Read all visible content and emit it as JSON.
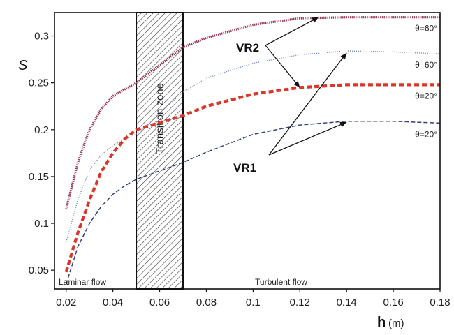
{
  "chart_data": {
    "type": "line",
    "xlabel": "h",
    "xlabel_unit": "(m)",
    "ylabel": "S",
    "xlim": [
      0.015,
      0.18
    ],
    "ylim": [
      0.03,
      0.325
    ],
    "x_ticks": [
      "0.02",
      "0.04",
      "0.06",
      "0.08",
      "0.1",
      "0.12",
      "0.14",
      "0.16",
      "0.18"
    ],
    "y_ticks": [
      "0.05",
      "0.1",
      "0.15",
      "0.2",
      "0.25",
      "0.3"
    ],
    "transition_zone": {
      "x_range": [
        0.05,
        0.07
      ],
      "label": "Transition zone"
    },
    "region_labels": {
      "laminar": "Laminar flow",
      "turbulent": "Turbulent flow"
    },
    "series": [
      {
        "name": "VR2",
        "end_label": "θ=60°",
        "color": "#9b3a5e",
        "style": "dense-dotted",
        "x": [
          0.02,
          0.025,
          0.03,
          0.035,
          0.04,
          0.045,
          0.05,
          0.07,
          0.08,
          0.1,
          0.12,
          0.14,
          0.16,
          0.18
        ],
        "y": [
          0.115,
          0.165,
          0.2,
          0.222,
          0.236,
          0.243,
          0.25,
          0.288,
          0.298,
          0.312,
          0.319,
          0.32,
          0.32,
          0.32
        ]
      },
      {
        "name": "VR1",
        "end_label": "θ=60°",
        "color": "#6a7fb0",
        "style": "fine-dotted",
        "x": [
          0.02,
          0.025,
          0.03,
          0.035,
          0.04,
          0.045,
          0.05,
          0.07,
          0.08,
          0.1,
          0.12,
          0.14,
          0.16,
          0.18
        ],
        "y": [
          0.08,
          0.125,
          0.157,
          0.173,
          0.183,
          0.19,
          0.195,
          0.24,
          0.255,
          0.271,
          0.28,
          0.284,
          0.283,
          0.281
        ]
      },
      {
        "name": "VR2",
        "end_label": "θ=20°",
        "color": "#d9362c",
        "style": "thick-dashed",
        "x": [
          0.02,
          0.025,
          0.03,
          0.035,
          0.04,
          0.045,
          0.05,
          0.07,
          0.08,
          0.1,
          0.12,
          0.14,
          0.16,
          0.18
        ],
        "y": [
          0.048,
          0.09,
          0.125,
          0.155,
          0.175,
          0.19,
          0.2,
          0.215,
          0.225,
          0.238,
          0.245,
          0.248,
          0.248,
          0.248
        ]
      },
      {
        "name": "VR1",
        "end_label": "θ=20°",
        "color": "#34407a",
        "style": "dashed",
        "x": [
          0.02,
          0.025,
          0.03,
          0.035,
          0.04,
          0.045,
          0.05,
          0.07,
          0.08,
          0.1,
          0.12,
          0.14,
          0.16,
          0.18
        ],
        "y": [
          0.035,
          0.075,
          0.1,
          0.118,
          0.131,
          0.14,
          0.147,
          0.165,
          0.176,
          0.195,
          0.205,
          0.209,
          0.209,
          0.207
        ]
      }
    ],
    "callouts": [
      {
        "label": "VR2",
        "targets": [
          [
            0.128,
            0.32
          ],
          [
            0.12,
            0.245
          ]
        ]
      },
      {
        "label": "VR1",
        "targets": [
          [
            0.14,
            0.282
          ],
          [
            0.14,
            0.208
          ]
        ]
      }
    ],
    "colors": {
      "frame": "#111111",
      "hatch": "#333333"
    }
  }
}
